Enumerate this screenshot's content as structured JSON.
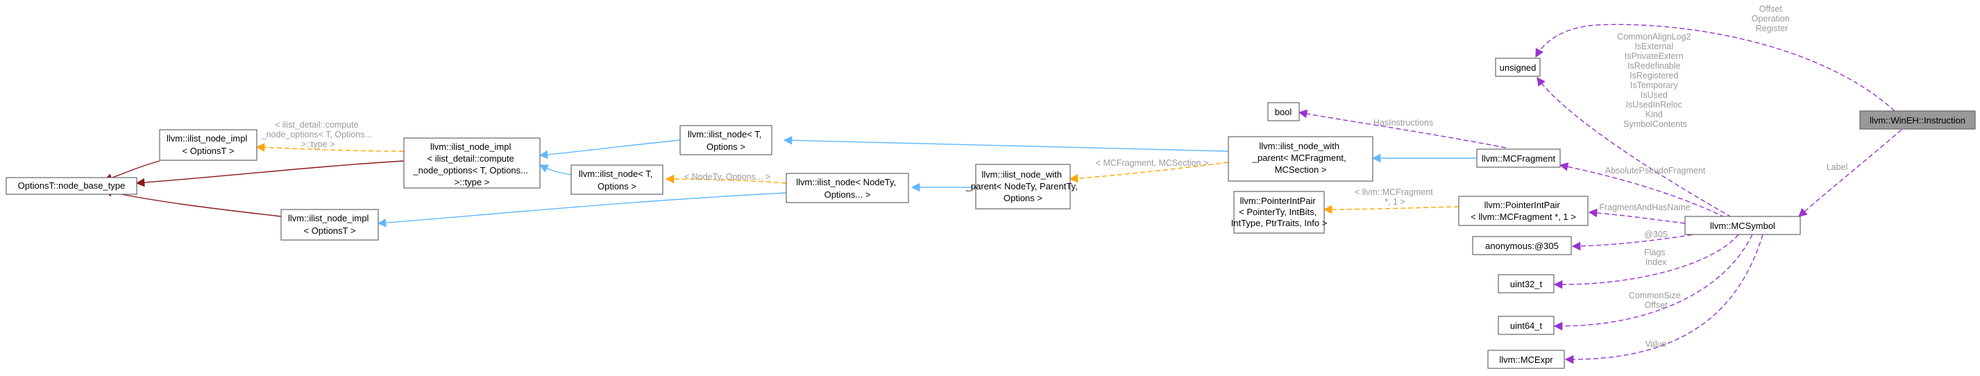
{
  "diagram": {
    "nodes": {
      "n_base": [
        "OptionsT::node_base_type"
      ],
      "n_impl_top": [
        "llvm::ilist_node_impl",
        "< OptionsT >"
      ],
      "n_impl_bottom": [
        "llvm::ilist_node_impl",
        "< OptionsT >"
      ],
      "n_impl_compute": [
        "llvm::ilist_node_impl",
        "< ilist_detail::compute",
        "_node_options< T, Options...",
        ">::type >"
      ],
      "n_node_top": [
        "llvm::ilist_node< T,",
        "Options >"
      ],
      "n_node_mid": [
        "llvm::ilist_node< T,",
        "Options >"
      ],
      "n_node_variadic": [
        "llvm::ilist_node< NodeTy,",
        "Options... >"
      ],
      "n_node_parent": [
        "llvm::ilist_node_with",
        "_parent< NodeTy, ParentTy,",
        "Options >"
      ],
      "n_node_fragment": [
        "llvm::ilist_node_with",
        "_parent< MCFragment,",
        "MCSection >"
      ],
      "n_bool": [
        "bool"
      ],
      "n_pip_generic": [
        "llvm::PointerIntPair",
        "< PointerTy, IntBits,",
        "IntType, PtrTraits, Info >"
      ],
      "n_unsigned": [
        "unsigned"
      ],
      "n_mcfragment": [
        "llvm::MCFragment"
      ],
      "n_pip": [
        "llvm::PointerIntPair",
        "< llvm::MCFragment *, 1 >"
      ],
      "n_anon": [
        "anonymous:@305"
      ],
      "n_u32": [
        "uint32_t"
      ],
      "n_u64": [
        "uint64_t"
      ],
      "n_mcexpr": [
        "llvm::MCExpr"
      ],
      "n_mcsymbol": [
        "llvm::MCSymbol"
      ],
      "n_instruction": [
        "llvm::WinEH::Instruction"
      ]
    },
    "edge_labels": {
      "impl_compute": [
        "< ilist_detail::compute",
        "_node_options< T, Options...",
        ">::type >"
      ],
      "node_variadic": [
        "< NodeTy, Options... >"
      ],
      "fragment_section": [
        "< MCFragment, MCSection >"
      ],
      "pip_fragment": [
        "< llvm::MCFragment",
        "*, 1 >"
      ],
      "has_instructions": [
        "HasInstructions"
      ],
      "symbol_unsigned": [
        "CommonAlignLog2",
        "IsExternal",
        "IsPrivateExtern",
        "IsRedefinable",
        "IsRegistered",
        "IsTemporary",
        "IsUsed",
        "IsUsedInReloc",
        "Kind",
        "SymbolContents"
      ],
      "instruction_unsigned": [
        "Offset",
        "Operation",
        "Register"
      ],
      "absolute_pseudo": [
        "AbsolutePseudoFragment"
      ],
      "fragment_has_name": [
        "FragmentAndHasName"
      ],
      "anon_305": [
        "@305"
      ],
      "u32": [
        "Flags",
        "Index"
      ],
      "u64": [
        "CommonSize",
        "Offset"
      ],
      "value": [
        "Value"
      ],
      "label": [
        "Label"
      ]
    }
  }
}
